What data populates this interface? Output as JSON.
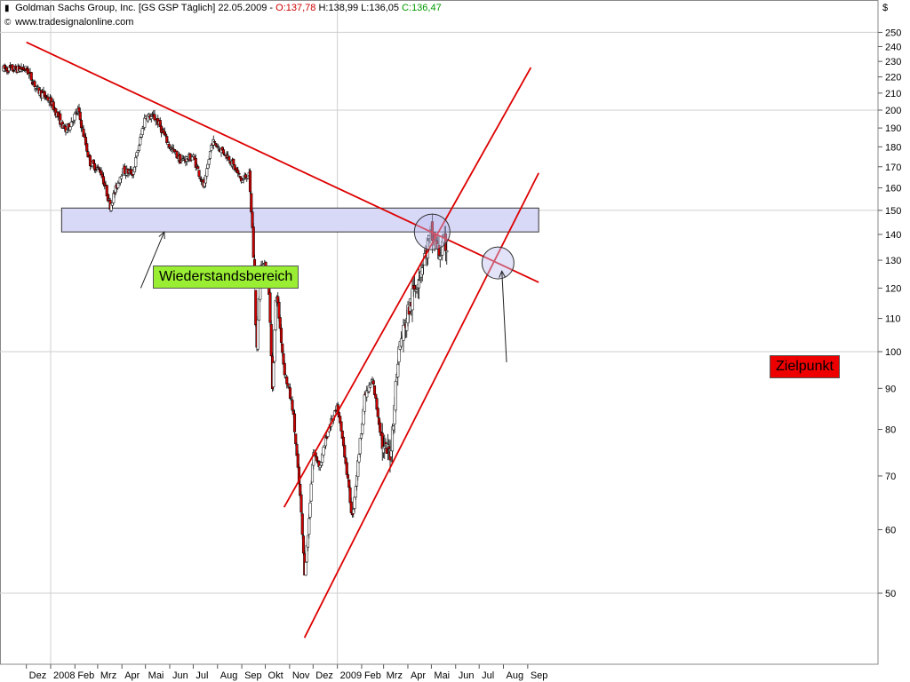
{
  "header": {
    "title_prefix": "Goldman Sachs Group, Inc. [GS GSP  Täglich] 22.05.2009 - ",
    "open_label": "O:137,78",
    "hl_label": " H:138,99 L:136,05 ",
    "close_label": "C:136,47",
    "source": "www.tradesignalonline.com"
  },
  "annotations": {
    "resistance_label": "Wiederstandsbereich",
    "target_label": "Zielpunkt"
  },
  "colors": {
    "up": "#ffffff",
    "down": "#cc0000",
    "trendline": "#dd0000",
    "zone_fill": "#d8d8f7",
    "resistance_label_bg": "#99ee33",
    "target_label_bg": "#ee0000"
  },
  "chart_data": {
    "type": "candlestick",
    "currency_label": "$",
    "y_scale": "log",
    "y_ticks": [
      50,
      60,
      70,
      80,
      90,
      100,
      110,
      120,
      130,
      140,
      150,
      160,
      170,
      180,
      190,
      200,
      210,
      220,
      230,
      240,
      250
    ],
    "y_gridlines": [
      50,
      100,
      150,
      200,
      250
    ],
    "x_tick_labels": [
      "Dez",
      "2008",
      "Feb",
      "Mrz",
      "Apr",
      "Mai",
      "Jun",
      "Jul",
      "Aug",
      "Sep",
      "Okt",
      "Nov",
      "Dez",
      "2009",
      "Feb",
      "Mrz",
      "Apr",
      "Mai",
      "Jun",
      "Jul",
      "Aug",
      "Sep"
    ],
    "x_start": "2007-12",
    "x_end": "2009-09",
    "last_bar": {
      "date": "2009-05-22",
      "open": 137.78,
      "high": 138.99,
      "low": 136.05,
      "close": 136.47
    },
    "close_path": [
      [
        "2007-12-01",
        225
      ],
      [
        "2007-12-15",
        212
      ],
      [
        "2008-01-01",
        205
      ],
      [
        "2008-01-20",
        188
      ],
      [
        "2008-02-05",
        200
      ],
      [
        "2008-02-20",
        172
      ],
      [
        "2008-03-05",
        168
      ],
      [
        "2008-03-17",
        152
      ],
      [
        "2008-04-01",
        168
      ],
      [
        "2008-04-15",
        167
      ],
      [
        "2008-05-01",
        197
      ],
      [
        "2008-05-15",
        195
      ],
      [
        "2008-06-01",
        180
      ],
      [
        "2008-06-15",
        173
      ],
      [
        "2008-07-01",
        175
      ],
      [
        "2008-07-15",
        160
      ],
      [
        "2008-07-25",
        183
      ],
      [
        "2008-08-15",
        175
      ],
      [
        "2008-09-01",
        163
      ],
      [
        "2008-09-10",
        167
      ],
      [
        "2008-09-15",
        140
      ],
      [
        "2008-09-20",
        100
      ],
      [
        "2008-09-25",
        130
      ],
      [
        "2008-10-05",
        125
      ],
      [
        "2008-10-10",
        90
      ],
      [
        "2008-10-15",
        120
      ],
      [
        "2008-10-25",
        95
      ],
      [
        "2008-11-05",
        85
      ],
      [
        "2008-11-15",
        65
      ],
      [
        "2008-11-20",
        53
      ],
      [
        "2008-11-25",
        60
      ],
      [
        "2008-12-01",
        75
      ],
      [
        "2008-12-10",
        72
      ],
      [
        "2008-12-20",
        80
      ],
      [
        "2009-01-01",
        85
      ],
      [
        "2009-01-10",
        75
      ],
      [
        "2009-01-20",
        62
      ],
      [
        "2009-02-05",
        88
      ],
      [
        "2009-02-15",
        92
      ],
      [
        "2009-03-01",
        75
      ],
      [
        "2009-03-10",
        75
      ],
      [
        "2009-03-20",
        100
      ],
      [
        "2009-04-01",
        112
      ],
      [
        "2009-04-15",
        125
      ],
      [
        "2009-05-01",
        140
      ],
      [
        "2009-05-10",
        133
      ],
      [
        "2009-05-22",
        136.47
      ]
    ],
    "resistance_zone": {
      "low": 141,
      "high": 151,
      "start": "2008-01-15",
      "end": "2009-09-15"
    },
    "trendlines": [
      {
        "name": "downtrend",
        "from": [
          "2007-12-01",
          243
        ],
        "to": [
          "2009-09-15",
          122
        ]
      },
      {
        "name": "channel-upper",
        "from": [
          "2008-10-25",
          64
        ],
        "to": [
          "2009-09-05",
          226
        ]
      },
      {
        "name": "channel-lower",
        "from": [
          "2008-11-20",
          44
        ],
        "to": [
          "2009-09-15",
          167
        ]
      }
    ],
    "circles": [
      {
        "name": "breakout-circle",
        "date": "2009-05-02",
        "value": 141
      },
      {
        "name": "target-circle",
        "date": "2009-07-25",
        "value": 129
      }
    ],
    "arrows": [
      {
        "name": "resistance-arrow",
        "from_date": "2008-04-25",
        "from_value": 120,
        "to_date": "2008-05-25",
        "to_value": 141
      },
      {
        "name": "target-arrow",
        "from_date": "2009-08-05",
        "from_value": 97,
        "to_date": "2009-07-30",
        "to_value": 126
      }
    ]
  }
}
